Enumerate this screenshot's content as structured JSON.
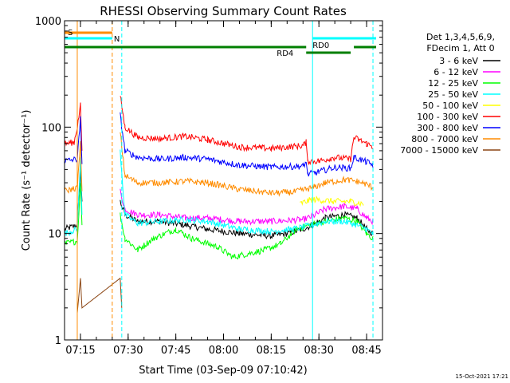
{
  "chart_data": {
    "type": "line",
    "title": "RHESSI Observing Summary Count Rates",
    "xlabel": "Start Time (03-Sep-09 07:10:42)",
    "ylabel": "Count Rate (s⁻¹ detector⁻¹)",
    "yscale": "log",
    "ylim": [
      1,
      1000
    ],
    "x_unit": "minutes",
    "xlim": [
      "07:10",
      "08:50"
    ],
    "x_ticks": [
      "07:15",
      "07:30",
      "07:45",
      "08:00",
      "08:15",
      "08:30",
      "08:45"
    ],
    "y_ticks": [
      "1",
      "10",
      "100",
      "1000"
    ],
    "grid": false,
    "legend_position": "right",
    "legend_header": [
      "Det 1,3,4,5,6,9,",
      "FDecim 1, Att 0"
    ],
    "timestamp": "15-Oct-2021 17:21",
    "series": [
      {
        "name": "3 - 6 keV",
        "color": "#000000",
        "points": [
          [
            "07:10",
            11
          ],
          [
            "07:14",
            12
          ],
          [
            "07:15",
            40
          ],
          [
            "07:15:30",
            20
          ],
          [
            "07:16",
            0
          ],
          [
            "07:27",
            0
          ],
          [
            "07:27:30",
            20
          ],
          [
            "07:29",
            15
          ],
          [
            "07:33",
            13
          ],
          [
            "07:40",
            13
          ],
          [
            "07:48",
            12
          ],
          [
            "07:55",
            11
          ],
          [
            "08:05",
            10
          ],
          [
            "08:15",
            9.5
          ],
          [
            "08:20",
            10
          ],
          [
            "08:25",
            11
          ],
          [
            "08:28",
            12
          ],
          [
            "08:32",
            14
          ],
          [
            "08:38",
            15
          ],
          [
            "08:42",
            14
          ],
          [
            "08:45",
            11
          ],
          [
            "08:47",
            10
          ]
        ]
      },
      {
        "name": "6 - 12 keV",
        "color": "#ff00ff",
        "points": [
          [
            "07:27:30",
            25
          ],
          [
            "07:29",
            17
          ],
          [
            "07:33",
            15
          ],
          [
            "07:40",
            15
          ],
          [
            "07:48",
            14
          ],
          [
            "07:55",
            14
          ],
          [
            "08:05",
            13
          ],
          [
            "08:15",
            13
          ],
          [
            "08:25",
            13.5
          ],
          [
            "08:28",
            14.5
          ],
          [
            "08:32",
            17
          ],
          [
            "08:38",
            18
          ],
          [
            "08:42",
            17
          ],
          [
            "08:45",
            14
          ],
          [
            "08:47",
            13
          ]
        ]
      },
      {
        "name": "12 - 25 keV",
        "color": "#00ff00",
        "points": [
          [
            "07:10",
            8
          ],
          [
            "07:14",
            8.5
          ],
          [
            "07:15",
            30
          ],
          [
            "07:15:30",
            12
          ],
          [
            "07:16",
            0
          ],
          [
            "07:27",
            0
          ],
          [
            "07:27:30",
            15
          ],
          [
            "07:29",
            9
          ],
          [
            "07:33",
            7
          ],
          [
            "07:38",
            9
          ],
          [
            "07:45",
            11
          ],
          [
            "07:50",
            9
          ],
          [
            "07:58",
            7.5
          ],
          [
            "08:03",
            6
          ],
          [
            "08:08",
            6.5
          ],
          [
            "08:13",
            7
          ],
          [
            "08:18",
            8
          ],
          [
            "08:23",
            11
          ],
          [
            "08:27",
            12
          ],
          [
            "08:32",
            13
          ],
          [
            "08:38",
            14
          ],
          [
            "08:42",
            13
          ],
          [
            "08:45",
            10
          ],
          [
            "08:47",
            9
          ]
        ]
      },
      {
        "name": "25 - 50 keV",
        "color": "#00ffff",
        "points": [
          [
            "07:10",
            10
          ],
          [
            "07:14",
            11
          ],
          [
            "07:15",
            50
          ],
          [
            "07:15:30",
            15
          ],
          [
            "07:16",
            0
          ],
          [
            "07:27",
            0
          ],
          [
            "07:27:30",
            60
          ],
          [
            "07:29",
            15
          ],
          [
            "07:33",
            12.5
          ],
          [
            "07:40",
            13
          ],
          [
            "07:48",
            13.5
          ],
          [
            "07:55",
            13
          ],
          [
            "08:05",
            11
          ],
          [
            "08:15",
            10.5
          ],
          [
            "08:22",
            11
          ],
          [
            "08:28",
            12
          ],
          [
            "08:32",
            13
          ],
          [
            "08:38",
            13
          ],
          [
            "08:42",
            12
          ],
          [
            "08:45",
            11
          ],
          [
            "08:47",
            10
          ]
        ]
      },
      {
        "name": "50 - 100 keV",
        "color": "#ffff00",
        "points": [
          [
            "08:24",
            19
          ],
          [
            "08:28",
            21
          ],
          [
            "08:35",
            20
          ],
          [
            "08:40",
            20
          ],
          [
            "08:44",
            19
          ]
        ]
      },
      {
        "name": "100 - 300 keV",
        "color": "#ff0000",
        "points": [
          [
            "07:10",
            70
          ],
          [
            "07:13",
            72
          ],
          [
            "07:14",
            100
          ],
          [
            "07:15",
            160
          ],
          [
            "07:15:30",
            60
          ],
          [
            "07:16",
            0
          ],
          [
            "07:27",
            0
          ],
          [
            "07:27:30",
            200
          ],
          [
            "07:29",
            100
          ],
          [
            "07:33",
            80
          ],
          [
            "07:40",
            78
          ],
          [
            "07:48",
            82
          ],
          [
            "07:55",
            76
          ],
          [
            "08:05",
            65
          ],
          [
            "08:15",
            63
          ],
          [
            "08:25",
            67
          ],
          [
            "08:26",
            72
          ],
          [
            "08:26:30",
            48
          ],
          [
            "08:30",
            48
          ],
          [
            "08:35",
            52
          ],
          [
            "08:40",
            50
          ],
          [
            "08:41",
            80
          ],
          [
            "08:45",
            70
          ],
          [
            "08:47",
            65
          ]
        ]
      },
      {
        "name": "300 - 800 keV",
        "color": "#0000ff",
        "points": [
          [
            "07:10",
            48
          ],
          [
            "07:14",
            50
          ],
          [
            "07:15",
            120
          ],
          [
            "07:15:30",
            45
          ],
          [
            "07:16",
            0
          ],
          [
            "07:27",
            0
          ],
          [
            "07:27:30",
            130
          ],
          [
            "07:29",
            60
          ],
          [
            "07:33",
            52
          ],
          [
            "07:40",
            50
          ],
          [
            "07:48",
            52
          ],
          [
            "07:55",
            50
          ],
          [
            "08:05",
            44
          ],
          [
            "08:15",
            42
          ],
          [
            "08:25",
            43
          ],
          [
            "08:26",
            47
          ],
          [
            "08:26:30",
            36
          ],
          [
            "08:30",
            38
          ],
          [
            "08:35",
            42
          ],
          [
            "08:40",
            41
          ],
          [
            "08:41",
            52
          ],
          [
            "08:45",
            47
          ],
          [
            "08:47",
            44
          ]
        ]
      },
      {
        "name": "800 - 7000 keV",
        "color": "#ff8c00",
        "points": [
          [
            "07:10",
            25
          ],
          [
            "07:14",
            27
          ],
          [
            "07:15",
            70
          ],
          [
            "07:15:30",
            25
          ],
          [
            "07:16",
            0
          ],
          [
            "07:27",
            0
          ],
          [
            "07:27:30",
            90
          ],
          [
            "07:29",
            35
          ],
          [
            "07:33",
            30
          ],
          [
            "07:40",
            30
          ],
          [
            "07:48",
            31
          ],
          [
            "07:55",
            30
          ],
          [
            "08:05",
            26
          ],
          [
            "08:15",
            24
          ],
          [
            "08:22",
            24.5
          ],
          [
            "08:28",
            27
          ],
          [
            "08:32",
            30
          ],
          [
            "08:38",
            32
          ],
          [
            "08:42",
            31
          ],
          [
            "08:45",
            29
          ],
          [
            "08:47",
            27
          ]
        ]
      },
      {
        "name": "7000 - 15000 keV",
        "color": "#8b4513",
        "points": [
          [
            "07:14",
            1.8
          ],
          [
            "07:15",
            3.8
          ],
          [
            "07:15:30",
            2
          ],
          [
            "07:27:30",
            3.8
          ],
          [
            "07:28",
            2
          ]
        ]
      }
    ],
    "status_bars": [
      {
        "label": "S",
        "color": "#ff8c00",
        "start": "07:10",
        "end": "07:25"
      },
      {
        "label": "N",
        "color": "#00ffff",
        "start": "07:10",
        "end": "07:25"
      },
      {
        "label": "",
        "color": "#007f00",
        "start": "07:10",
        "end": "08:26"
      },
      {
        "label": "RD0",
        "color": "#00ffff",
        "start": "08:28",
        "end": "08:48"
      },
      {
        "label": "RD4",
        "color": "#007f00",
        "start": "08:26",
        "end": "08:40"
      },
      {
        "label": "",
        "color": "#007f00",
        "start": "08:41",
        "end": "08:48"
      }
    ],
    "markers": [
      {
        "color": "#ff8c00",
        "style": "solid",
        "time": "07:14"
      },
      {
        "color": "#ff8c00",
        "style": "dashed",
        "time": "07:25"
      },
      {
        "color": "#00ffff",
        "style": "dashed",
        "time": "07:28"
      },
      {
        "color": "#00ffff",
        "style": "solid",
        "time": "07:10"
      },
      {
        "color": "#00ffff",
        "style": "solid",
        "time": "08:28"
      },
      {
        "color": "#00ffff",
        "style": "dashed",
        "time": "08:47"
      }
    ]
  }
}
